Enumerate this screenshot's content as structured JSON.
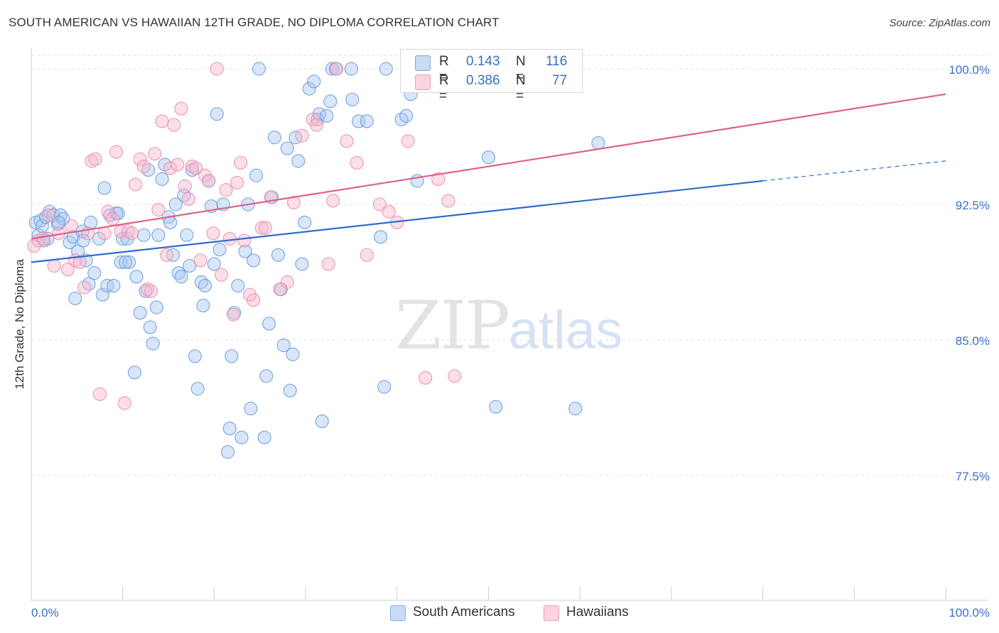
{
  "header": {
    "title": "SOUTH AMERICAN VS HAWAIIAN 12TH GRADE, NO DIPLOMA CORRELATION CHART",
    "source": "Source: ZipAtlas.com"
  },
  "stats": [
    {
      "r_label": "R =",
      "r_value": "0.143",
      "n_label": "N =",
      "n_value": "116",
      "color": "#a9c8ef"
    },
    {
      "r_label": "R =",
      "r_value": "0.386",
      "n_label": "N =",
      "n_value": "77",
      "color": "#f6b8cb"
    }
  ],
  "legend": [
    {
      "label": "South Americans",
      "color": "#a9c8ef"
    },
    {
      "label": "Hawaiians",
      "color": "#f6b8cb"
    }
  ],
  "watermark": {
    "part1": "ZIP",
    "part2": "atlas"
  },
  "colors": {
    "blue_fill": "#a9c8ef",
    "blue_stroke": "#6a9ee0",
    "blue_line": "#2f6ccd",
    "pink_fill": "#f6b8cb",
    "pink_stroke": "#ea8fae",
    "pink_line": "#e0608d",
    "tick_label": "#3a6fc8",
    "grid": "#e2e2e2"
  },
  "chart_data": {
    "type": "scatter",
    "title": "SOUTH AMERICAN VS HAWAIIAN 12TH GRADE, NO DIPLOMA CORRELATION CHART",
    "xlabel": "",
    "ylabel": "12th Grade, No Diploma",
    "xlim": [
      0,
      100
    ],
    "ylim": [
      70.0,
      101.2
    ],
    "x_ticks": [
      "0.0%",
      "100.0%"
    ],
    "y_ticks": [
      {
        "value": 100.0,
        "label": "100.0%"
      },
      {
        "value": 92.5,
        "label": "92.5%"
      },
      {
        "value": 85.0,
        "label": "85.0%"
      },
      {
        "value": 77.5,
        "label": "77.5%"
      }
    ],
    "grid": true,
    "series": [
      {
        "name": "South Americans",
        "trend": {
          "x": [
            0,
            80
          ],
          "y": [
            89.3,
            93.8
          ],
          "dashed_extension": {
            "x": [
              80,
              100
            ],
            "y": [
              93.8,
              94.9
            ]
          }
        },
        "points": [
          [
            0.5,
            91.5
          ],
          [
            0.8,
            90.8
          ],
          [
            1.0,
            91.6
          ],
          [
            1.2,
            91.3
          ],
          [
            1.4,
            90.5
          ],
          [
            1.6,
            91.8
          ],
          [
            1.8,
            90.6
          ],
          [
            2.0,
            92.1
          ],
          [
            2.4,
            91.9
          ],
          [
            2.9,
            91.4
          ],
          [
            3.2,
            91.9
          ],
          [
            3.5,
            91.7
          ],
          [
            4.2,
            90.4
          ],
          [
            4.6,
            90.7
          ],
          [
            4.8,
            87.3
          ],
          [
            5.1,
            89.9
          ],
          [
            5.6,
            91.0
          ],
          [
            5.7,
            90.5
          ],
          [
            6.0,
            89.4
          ],
          [
            6.3,
            88.1
          ],
          [
            6.5,
            91.5
          ],
          [
            6.9,
            88.7
          ],
          [
            7.4,
            90.6
          ],
          [
            7.8,
            87.5
          ],
          [
            8.0,
            93.4
          ],
          [
            8.3,
            88.0
          ],
          [
            8.6,
            91.9
          ],
          [
            9.0,
            88.0
          ],
          [
            9.3,
            92.0
          ],
          [
            9.5,
            92.0
          ],
          [
            9.8,
            89.3
          ],
          [
            10.0,
            90.6
          ],
          [
            10.5,
            90.6
          ],
          [
            10.7,
            89.3
          ],
          [
            11.3,
            83.2
          ],
          [
            11.5,
            88.5
          ],
          [
            11.9,
            86.5
          ],
          [
            12.3,
            90.8
          ],
          [
            12.5,
            87.7
          ],
          [
            12.8,
            94.4
          ],
          [
            13.0,
            85.7
          ],
          [
            13.3,
            84.8
          ],
          [
            13.7,
            86.8
          ],
          [
            13.9,
            90.8
          ],
          [
            14.3,
            93.9
          ],
          [
            14.6,
            94.7
          ],
          [
            15.0,
            91.8
          ],
          [
            15.2,
            91.5
          ],
          [
            15.5,
            89.7
          ],
          [
            15.8,
            92.5
          ],
          [
            16.1,
            88.7
          ],
          [
            16.4,
            88.5
          ],
          [
            16.7,
            93.0
          ],
          [
            17.0,
            90.8
          ],
          [
            17.3,
            89.1
          ],
          [
            17.6,
            94.4
          ],
          [
            17.9,
            84.1
          ],
          [
            18.2,
            82.3
          ],
          [
            18.6,
            88.2
          ],
          [
            18.8,
            86.9
          ],
          [
            19.0,
            88.0
          ],
          [
            19.4,
            93.8
          ],
          [
            19.7,
            92.4
          ],
          [
            20.0,
            89.2
          ],
          [
            20.3,
            97.5
          ],
          [
            20.6,
            90.0
          ],
          [
            21.0,
            92.5
          ],
          [
            21.5,
            78.8
          ],
          [
            21.7,
            80.1
          ],
          [
            21.9,
            84.1
          ],
          [
            22.2,
            86.5
          ],
          [
            22.6,
            88.0
          ],
          [
            23.0,
            79.6
          ],
          [
            23.4,
            89.9
          ],
          [
            23.7,
            92.5
          ],
          [
            24.0,
            81.2
          ],
          [
            24.3,
            89.4
          ],
          [
            24.6,
            94.1
          ],
          [
            24.9,
            100.0
          ],
          [
            25.5,
            79.6
          ],
          [
            25.7,
            83.0
          ],
          [
            26.0,
            85.9
          ],
          [
            26.3,
            92.9
          ],
          [
            26.6,
            96.2
          ],
          [
            27.0,
            89.7
          ],
          [
            27.3,
            87.8
          ],
          [
            27.6,
            84.7
          ],
          [
            28.0,
            95.6
          ],
          [
            28.3,
            82.2
          ],
          [
            28.6,
            84.2
          ],
          [
            28.9,
            96.2
          ],
          [
            29.2,
            94.9
          ],
          [
            29.6,
            89.2
          ],
          [
            29.9,
            91.5
          ],
          [
            30.4,
            98.9
          ],
          [
            30.9,
            99.3
          ],
          [
            31.3,
            97.2
          ],
          [
            31.5,
            97.5
          ],
          [
            31.8,
            80.5
          ],
          [
            32.3,
            97.4
          ],
          [
            32.7,
            98.2
          ],
          [
            32.9,
            100.0
          ],
          [
            33.3,
            100.0
          ],
          [
            35.0,
            100.0
          ],
          [
            35.1,
            98.3
          ],
          [
            35.8,
            97.1
          ],
          [
            36.7,
            97.1
          ],
          [
            38.2,
            90.7
          ],
          [
            38.6,
            82.4
          ],
          [
            38.8,
            100.0
          ],
          [
            40.5,
            97.2
          ],
          [
            41.0,
            97.4
          ],
          [
            42.2,
            93.8
          ],
          [
            50.0,
            95.1
          ],
          [
            50.8,
            81.3
          ],
          [
            59.5,
            81.2
          ],
          [
            62.0,
            95.9
          ],
          [
            41.5,
            98.6
          ],
          [
            3.0,
            91.5
          ],
          [
            10.3,
            89.3
          ]
        ]
      },
      {
        "name": "Hawaiians",
        "trend": {
          "x": [
            0,
            100
          ],
          "y": [
            90.6,
            98.6
          ]
        },
        "points": [
          [
            0.3,
            90.2
          ],
          [
            0.8,
            90.5
          ],
          [
            1.3,
            90.6
          ],
          [
            1.9,
            91.9
          ],
          [
            2.5,
            89.1
          ],
          [
            3.0,
            90.9
          ],
          [
            4.0,
            88.9
          ],
          [
            4.4,
            91.3
          ],
          [
            4.8,
            89.4
          ],
          [
            5.3,
            89.3
          ],
          [
            5.8,
            87.9
          ],
          [
            6.2,
            90.9
          ],
          [
            6.6,
            94.9
          ],
          [
            7.0,
            95.0
          ],
          [
            7.5,
            82.0
          ],
          [
            8.0,
            90.9
          ],
          [
            8.4,
            92.1
          ],
          [
            8.9,
            91.7
          ],
          [
            9.3,
            95.4
          ],
          [
            9.8,
            91.0
          ],
          [
            10.2,
            81.5
          ],
          [
            10.6,
            91.0
          ],
          [
            11.0,
            90.9
          ],
          [
            11.4,
            93.6
          ],
          [
            11.9,
            95.0
          ],
          [
            12.3,
            94.6
          ],
          [
            12.7,
            87.8
          ],
          [
            13.1,
            87.7
          ],
          [
            13.5,
            95.3
          ],
          [
            13.9,
            92.2
          ],
          [
            14.3,
            97.1
          ],
          [
            14.8,
            89.7
          ],
          [
            15.2,
            94.5
          ],
          [
            15.6,
            96.9
          ],
          [
            16.0,
            94.7
          ],
          [
            16.4,
            97.8
          ],
          [
            16.8,
            93.5
          ],
          [
            17.2,
            92.8
          ],
          [
            17.6,
            94.6
          ],
          [
            18.0,
            94.5
          ],
          [
            18.5,
            89.4
          ],
          [
            19.0,
            94.1
          ],
          [
            19.4,
            93.8
          ],
          [
            19.9,
            90.9
          ],
          [
            20.3,
            100.0
          ],
          [
            20.8,
            88.6
          ],
          [
            21.3,
            93.3
          ],
          [
            21.7,
            90.6
          ],
          [
            22.1,
            86.4
          ],
          [
            22.5,
            93.7
          ],
          [
            22.9,
            94.8
          ],
          [
            23.3,
            90.5
          ],
          [
            23.9,
            87.5
          ],
          [
            24.3,
            87.2
          ],
          [
            25.2,
            91.2
          ],
          [
            25.6,
            91.2
          ],
          [
            26.2,
            92.9
          ],
          [
            27.2,
            87.8
          ],
          [
            28.0,
            88.2
          ],
          [
            28.7,
            92.6
          ],
          [
            29.6,
            96.3
          ],
          [
            30.8,
            97.2
          ],
          [
            31.2,
            96.9
          ],
          [
            32.5,
            89.2
          ],
          [
            33.0,
            92.7
          ],
          [
            33.4,
            100.0
          ],
          [
            34.5,
            96.0
          ],
          [
            35.6,
            94.8
          ],
          [
            36.7,
            89.7
          ],
          [
            38.1,
            92.5
          ],
          [
            39.1,
            92.1
          ],
          [
            40.0,
            91.5
          ],
          [
            41.2,
            96.0
          ],
          [
            43.1,
            82.9
          ],
          [
            44.5,
            93.9
          ],
          [
            45.6,
            92.7
          ],
          [
            46.3,
            83.0
          ]
        ]
      }
    ]
  }
}
